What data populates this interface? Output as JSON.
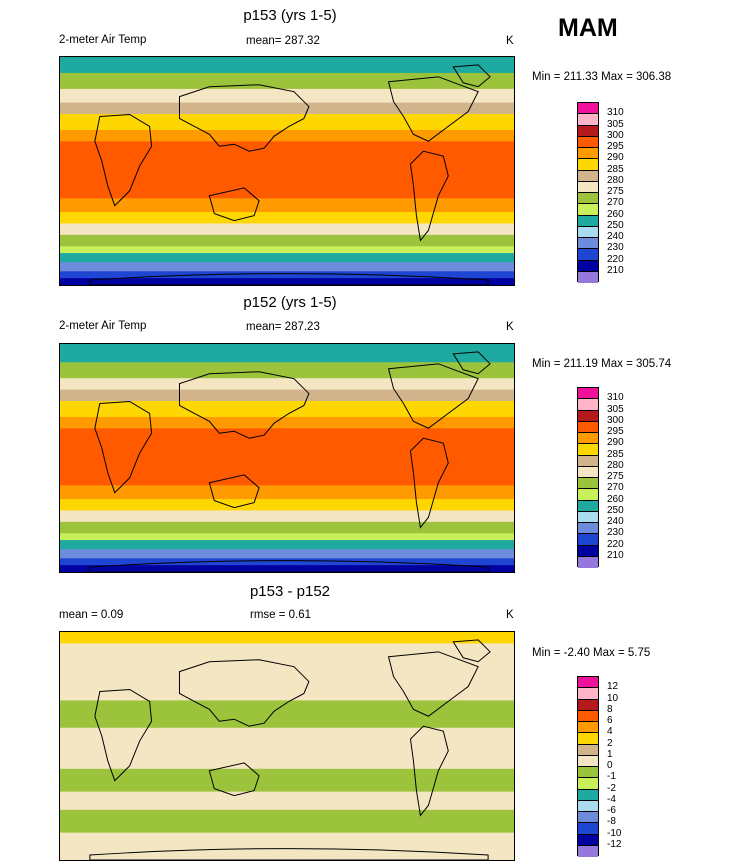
{
  "season": "MAM",
  "panels": [
    {
      "title": "p153 (yrs 1-5)",
      "left_label": "2-meter Air Temp",
      "center_label": "mean= 287.32",
      "units": "K",
      "minmax": "Min = 211.33 Max = 306.38",
      "legend_colors": [
        "#f0129a",
        "#ffb4c8",
        "#b4191e",
        "#ff5a00",
        "#ff9b00",
        "#ffd700",
        "#d2b48c",
        "#f5e6c3",
        "#9cc33c",
        "#c8f05a",
        "#1eaaa0",
        "#aadcf0",
        "#6e8cdc",
        "#1e46d2",
        "#0000a0",
        "#9678dc"
      ],
      "legend_labels": [
        "310",
        "305",
        "300",
        "295",
        "290",
        "285",
        "280",
        "275",
        "270",
        "260",
        "250",
        "240",
        "230",
        "220",
        "210"
      ],
      "bands": [
        {
          "color": "#1eaaa0",
          "ymin": 0,
          "ymax": 0.07
        },
        {
          "color": "#9cc33c",
          "ymin": 0.07,
          "ymax": 0.14
        },
        {
          "color": "#f5e6c3",
          "ymin": 0.14,
          "ymax": 0.2
        },
        {
          "color": "#d2b48c",
          "ymin": 0.2,
          "ymax": 0.25
        },
        {
          "color": "#ffd700",
          "ymin": 0.25,
          "ymax": 0.32
        },
        {
          "color": "#ff9b00",
          "ymin": 0.32,
          "ymax": 0.37
        },
        {
          "color": "#ff5a00",
          "ymin": 0.37,
          "ymax": 0.62
        },
        {
          "color": "#ff9b00",
          "ymin": 0.62,
          "ymax": 0.68
        },
        {
          "color": "#ffd700",
          "ymin": 0.68,
          "ymax": 0.73
        },
        {
          "color": "#f5e6c3",
          "ymin": 0.73,
          "ymax": 0.78
        },
        {
          "color": "#9cc33c",
          "ymin": 0.78,
          "ymax": 0.83
        },
        {
          "color": "#c8f05a",
          "ymin": 0.83,
          "ymax": 0.86
        },
        {
          "color": "#1eaaa0",
          "ymin": 0.86,
          "ymax": 0.9
        },
        {
          "color": "#6e8cdc",
          "ymin": 0.9,
          "ymax": 0.94
        },
        {
          "color": "#1e46d2",
          "ymin": 0.94,
          "ymax": 0.97
        },
        {
          "color": "#0000a0",
          "ymin": 0.97,
          "ymax": 1
        }
      ]
    },
    {
      "title": "p152 (yrs 1-5)",
      "left_label": "2-meter Air Temp",
      "center_label": "mean= 287.23",
      "units": "K",
      "minmax": "Min = 211.19 Max = 305.74",
      "legend_colors": [
        "#f0129a",
        "#ffb4c8",
        "#b4191e",
        "#ff5a00",
        "#ff9b00",
        "#ffd700",
        "#d2b48c",
        "#f5e6c3",
        "#9cc33c",
        "#c8f05a",
        "#1eaaa0",
        "#aadcf0",
        "#6e8cdc",
        "#1e46d2",
        "#0000a0",
        "#9678dc"
      ],
      "legend_labels": [
        "310",
        "305",
        "300",
        "295",
        "290",
        "285",
        "280",
        "275",
        "270",
        "260",
        "250",
        "240",
        "230",
        "220",
        "210"
      ],
      "bands": [
        {
          "color": "#1eaaa0",
          "ymin": 0,
          "ymax": 0.08
        },
        {
          "color": "#9cc33c",
          "ymin": 0.08,
          "ymax": 0.15
        },
        {
          "color": "#f5e6c3",
          "ymin": 0.15,
          "ymax": 0.2
        },
        {
          "color": "#d2b48c",
          "ymin": 0.2,
          "ymax": 0.25
        },
        {
          "color": "#ffd700",
          "ymin": 0.25,
          "ymax": 0.32
        },
        {
          "color": "#ff9b00",
          "ymin": 0.32,
          "ymax": 0.37
        },
        {
          "color": "#ff5a00",
          "ymin": 0.37,
          "ymax": 0.62
        },
        {
          "color": "#ff9b00",
          "ymin": 0.62,
          "ymax": 0.68
        },
        {
          "color": "#ffd700",
          "ymin": 0.68,
          "ymax": 0.73
        },
        {
          "color": "#f5e6c3",
          "ymin": 0.73,
          "ymax": 0.78
        },
        {
          "color": "#9cc33c",
          "ymin": 0.78,
          "ymax": 0.83
        },
        {
          "color": "#c8f05a",
          "ymin": 0.83,
          "ymax": 0.86
        },
        {
          "color": "#1eaaa0",
          "ymin": 0.86,
          "ymax": 0.9
        },
        {
          "color": "#6e8cdc",
          "ymin": 0.9,
          "ymax": 0.94
        },
        {
          "color": "#1e46d2",
          "ymin": 0.94,
          "ymax": 0.97
        },
        {
          "color": "#0000a0",
          "ymin": 0.97,
          "ymax": 1
        }
      ]
    },
    {
      "title": "p153 - p152",
      "left_label": "mean =   0.09",
      "center_label": "rmse =   0.61",
      "units": "K",
      "minmax": "Min =  -2.40 Max =   5.75",
      "legend_colors": [
        "#f0129a",
        "#ffb4c8",
        "#b4191e",
        "#ff5a00",
        "#ff9b00",
        "#ffd700",
        "#d2b48c",
        "#f5e6c3",
        "#9cc33c",
        "#c8f05a",
        "#1eaaa0",
        "#aadcf0",
        "#6e8cdc",
        "#1e46d2",
        "#0000a0",
        "#9678dc"
      ],
      "legend_labels": [
        "12",
        "10",
        "8",
        "6",
        "4",
        "2",
        "1",
        "0",
        "-1",
        "-2",
        "-4",
        "-6",
        "-8",
        "-10",
        "-12"
      ],
      "bands": [
        {
          "color": "#ffd700",
          "ymin": 0,
          "ymax": 0.05
        },
        {
          "color": "#f5e6c3",
          "ymin": 0.05,
          "ymax": 0.3
        },
        {
          "color": "#9cc33c",
          "ymin": 0.3,
          "ymax": 0.42
        },
        {
          "color": "#f5e6c3",
          "ymin": 0.42,
          "ymax": 0.6
        },
        {
          "color": "#9cc33c",
          "ymin": 0.6,
          "ymax": 0.7
        },
        {
          "color": "#f5e6c3",
          "ymin": 0.7,
          "ymax": 0.78
        },
        {
          "color": "#9cc33c",
          "ymin": 0.78,
          "ymax": 0.88
        },
        {
          "color": "#f5e6c3",
          "ymin": 0.88,
          "ymax": 1
        }
      ]
    }
  ]
}
